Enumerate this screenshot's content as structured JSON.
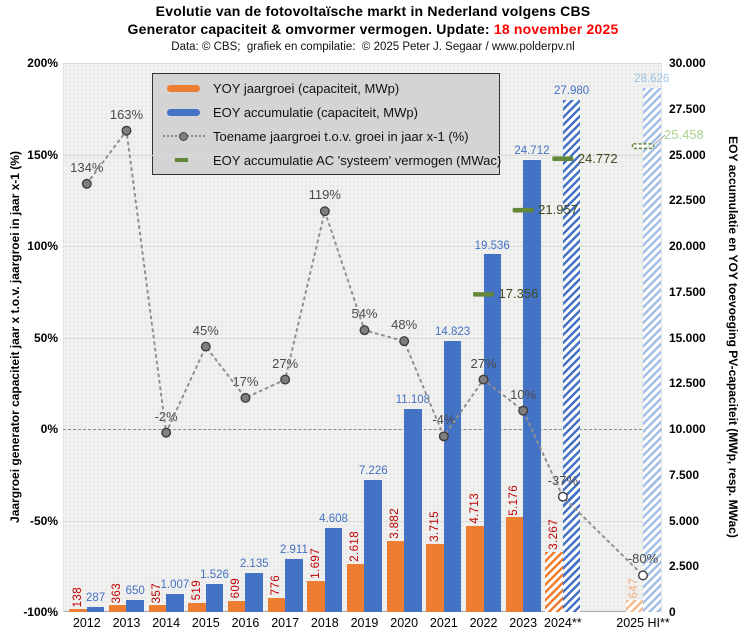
{
  "title": {
    "line1": "Evolutie van de fotovoltaïsche markt in Nederland volgens CBS",
    "line2_prefix": "Generator capaciteit & omvormer vermogen. Update: ",
    "line2_date": "18 november 2025",
    "line3": "Data: © CBS;  grafiek en compilatie:  © 2025 Peter J. Segaar / www.polderpv.nl"
  },
  "colors": {
    "orange": "#ED7D31",
    "blue": "#4472C4",
    "orange_light": "#F6BB8F",
    "blue_light": "#A3BFE4",
    "yoy_label": "#C00000",
    "eoy_label": "#4472C4",
    "yoy_label_light": "#F2AF7E",
    "eoy_label_light": "#9DC3E6",
    "pct_line": "#909090",
    "pct_marker_fill": "#7F7F7F",
    "pct_marker_stroke": "#3F3F3F",
    "pct_label": "#4A4A4A",
    "green": "#64883A",
    "green_label_dark": "#3E4A21",
    "green_label_light": "#A9D18E",
    "update_red": "#FF0000"
  },
  "legend": {
    "items": [
      {
        "label": "YOY jaargroei (capaciteit, MWp)",
        "swatch": "bar",
        "color": "#ED7D31"
      },
      {
        "label": "EOY accumulatie (capaciteit, MWp)",
        "swatch": "bar",
        "color": "#4472C4"
      },
      {
        "label": "Toename jaargroei t.o.v. groei in jaar x-1 (%)",
        "swatch": "dotted-line",
        "color": "#8C8C8C"
      },
      {
        "label": "EOY accumulatie AC 'systeem' vermogen (MWac)",
        "swatch": "dash",
        "color": "#64883A"
      }
    ]
  },
  "axes": {
    "left": {
      "title": "Jaargroei generator capaciteit jaar x t.o.v. jaargroei in jaar x-1 (%)",
      "ticks": [
        "200%",
        "150%",
        "100%",
        "50%",
        "0%",
        "-50%",
        "-100%"
      ],
      "tick_values": [
        200,
        150,
        100,
        50,
        0,
        -50,
        -100
      ],
      "range": [
        -100,
        200
      ],
      "gridline_values": [
        150,
        100,
        50,
        -50
      ],
      "zero_line": "dashed"
    },
    "right": {
      "title": "EOY accumulatie en YOY toevoeging PV-capaciteit (MWp, resp. MWac)",
      "ticks": [
        "30.000",
        "27.500",
        "25.000",
        "22.500",
        "20.000",
        "17.500",
        "15.000",
        "12.500",
        "10.000",
        "7.500",
        "5.000",
        "2.500",
        "0"
      ],
      "tick_values": [
        30000,
        27500,
        25000,
        22500,
        20000,
        17500,
        15000,
        12500,
        10000,
        7500,
        5000,
        2500,
        0
      ],
      "range": [
        0,
        30000
      ]
    }
  },
  "chart_data": {
    "type": "bar",
    "title": "Evolutie van de fotovoltaïsche markt in Nederland volgens CBS",
    "left_ylim": [
      -100,
      200
    ],
    "right_ylim": [
      0,
      30000
    ],
    "grid": true,
    "legend_position": "top-left-inside",
    "series_meta": [
      {
        "name": "YOY jaargroei (capaciteit, MWp)",
        "type": "bar",
        "axis": "right",
        "color": "#ED7D31"
      },
      {
        "name": "EOY accumulatie (capaciteit, MWp)",
        "type": "bar",
        "axis": "right",
        "color": "#4472C4"
      },
      {
        "name": "Toename jaargroei t.o.v. groei in jaar x-1 (%)",
        "type": "dotted-line",
        "axis": "left",
        "color": "#909090"
      },
      {
        "name": "EOY accumulatie AC 'systeem' vermogen (MWac)",
        "type": "dash-marker",
        "axis": "right",
        "color": "#64883A"
      }
    ],
    "categories": [
      {
        "label": "2012",
        "yoy": 138,
        "yoy_label": "138",
        "eoy": 287,
        "eoy_label": "287",
        "pct": 134,
        "pct_label": "134%",
        "style": "solid",
        "marker": "filled"
      },
      {
        "label": "2013",
        "yoy": 363,
        "yoy_label": "363",
        "eoy": 650,
        "eoy_label": "650",
        "pct": 163,
        "pct_label": "163%",
        "style": "solid",
        "marker": "filled"
      },
      {
        "label": "2014",
        "yoy": 357,
        "yoy_label": "357",
        "eoy": 1007,
        "eoy_label": "1.007",
        "pct": -2,
        "pct_label": "-2%",
        "style": "solid",
        "marker": "filled"
      },
      {
        "label": "2015",
        "yoy": 519,
        "yoy_label": "519",
        "eoy": 1526,
        "eoy_label": "1.526",
        "pct": 45,
        "pct_label": "45%",
        "style": "solid",
        "marker": "filled"
      },
      {
        "label": "2016",
        "yoy": 609,
        "yoy_label": "609",
        "eoy": 2135,
        "eoy_label": "2.135",
        "pct": 17,
        "pct_label": "17%",
        "style": "solid",
        "marker": "filled"
      },
      {
        "label": "2017",
        "yoy": 776,
        "yoy_label": "776",
        "eoy": 2911,
        "eoy_label": "2.911",
        "pct": 27,
        "pct_label": "27%",
        "style": "solid",
        "marker": "filled"
      },
      {
        "label": "2018",
        "yoy": 1697,
        "yoy_label": "1.697",
        "eoy": 4608,
        "eoy_label": "4.608",
        "pct": 119,
        "pct_label": "119%",
        "style": "solid",
        "marker": "filled"
      },
      {
        "label": "2019",
        "yoy": 2618,
        "yoy_label": "2.618",
        "eoy": 7226,
        "eoy_label": "7.226",
        "pct": 54,
        "pct_label": "54%",
        "style": "solid",
        "marker": "filled"
      },
      {
        "label": "2020",
        "yoy": 3882,
        "yoy_label": "3.882",
        "eoy": 11108,
        "eoy_label": "11.108",
        "pct": 48,
        "pct_label": "48%",
        "style": "solid",
        "marker": "filled"
      },
      {
        "label": "2021",
        "yoy": 3715,
        "yoy_label": "3.715",
        "eoy": 14823,
        "eoy_label": "14.823",
        "pct": -4,
        "pct_label": "-4%",
        "style": "solid",
        "marker": "filled"
      },
      {
        "label": "2022",
        "yoy": 4713,
        "yoy_label": "4.713",
        "eoy": 19536,
        "eoy_label": "19.536",
        "pct": 27,
        "pct_label": "27%",
        "style": "solid",
        "marker": "filled",
        "ac": 17356,
        "ac_label": "17.356",
        "ac_label_style": "dark"
      },
      {
        "label": "2023",
        "yoy": 5176,
        "yoy_label": "5.176",
        "eoy": 24712,
        "eoy_label": "24.712",
        "pct": 10,
        "pct_label": "10%",
        "style": "solid",
        "marker": "filled",
        "ac": 21957,
        "ac_label": "21.957",
        "ac_label_style": "dark"
      },
      {
        "label": "2024**",
        "yoy": 3267,
        "yoy_label": "3.267",
        "eoy": 27980,
        "eoy_label": "27.980",
        "pct": -37,
        "pct_label": "-37%",
        "style": "hatched",
        "marker": "open",
        "ac": 24772,
        "ac_label": "24.772",
        "ac_label_style": "dark"
      },
      {
        "label": "2025 HI**",
        "yoy": 647,
        "yoy_label": "647",
        "eoy": 28626,
        "eoy_label": "28.626",
        "pct": -80,
        "pct_label": "-80%",
        "style": "hatched-light",
        "marker": "open",
        "ac": 25458,
        "ac_label": "25.458",
        "ac_label_style": "light",
        "ac_marker": "open",
        "ac_label_outside": true,
        "gap_before": true
      }
    ]
  }
}
